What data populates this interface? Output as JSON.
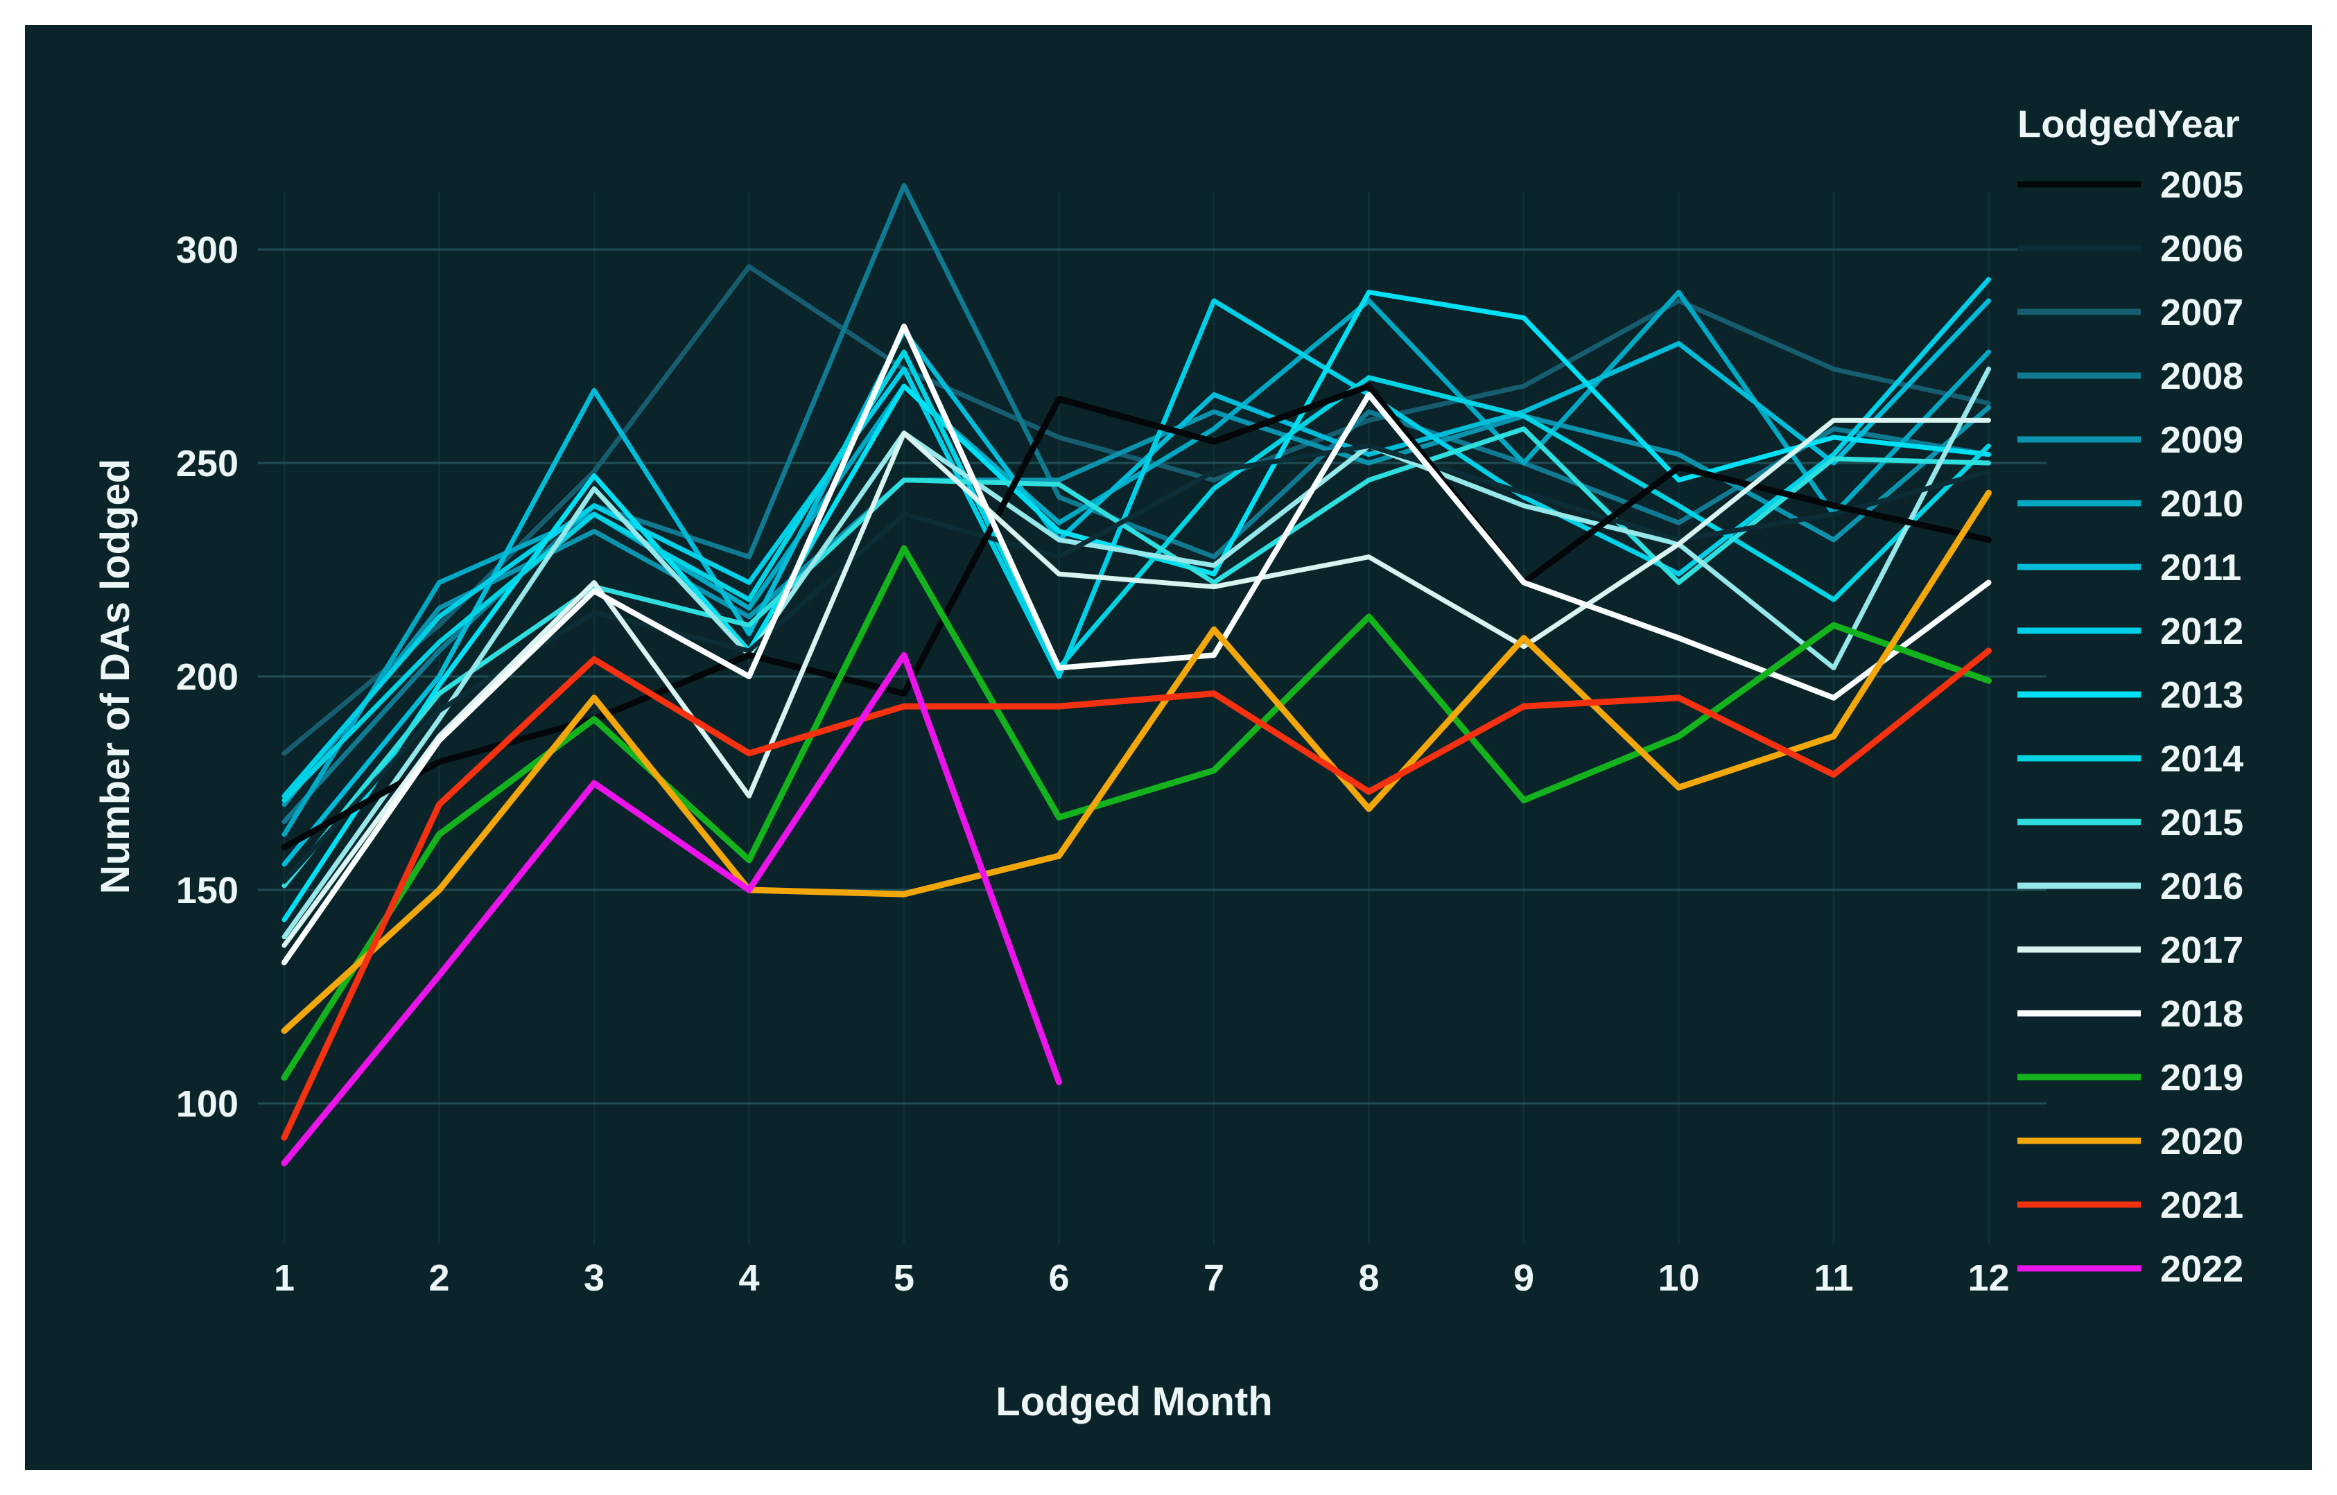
{
  "window": {
    "outer_background": "#ffffff"
  },
  "chart": {
    "background": "#0a2429",
    "text_color": "#edf6f6",
    "grid_color_h": "#24565b",
    "grid_color_v": "#14393f",
    "y_axis_title": "Number of DAs lodged",
    "x_axis_title": "Lodged Month",
    "legend_title": "LodgedYear"
  },
  "chart_data": {
    "type": "line",
    "title": "",
    "xlabel": "Lodged Month",
    "ylabel": "Number of DAs lodged",
    "legend_title": "LodgedYear",
    "legend_position": "right",
    "grid": true,
    "x": [
      1,
      2,
      3,
      4,
      5,
      6,
      7,
      8,
      9,
      10,
      11,
      12
    ],
    "xlim": [
      0.8,
      12.4
    ],
    "ylim": [
      80,
      325
    ],
    "y_ticks": [
      100,
      150,
      200,
      250,
      300
    ],
    "x_ticks": [
      1,
      2,
      3,
      4,
      5,
      6,
      7,
      8,
      9,
      10,
      11,
      12
    ],
    "draw_order": [
      "2007",
      "2008",
      "2009",
      "2010",
      "2011",
      "2012",
      "2013",
      "2014",
      "2015",
      "2016",
      "2006",
      "2005",
      "2017",
      "2018",
      "2019",
      "2020",
      "2021",
      "2022"
    ],
    "series": [
      {
        "name": "2005",
        "color": "#030709",
        "width": 9,
        "values": [
          160,
          180,
          190,
          205,
          196,
          265,
          255,
          268,
          222,
          249,
          240,
          232
        ]
      },
      {
        "name": "2006",
        "color": "#0c2d36",
        "width": 7,
        "values": [
          152,
          192,
          215,
          206,
          238,
          228,
          248,
          254,
          243,
          232,
          238,
          248
        ]
      },
      {
        "name": "2007",
        "color": "#175d70",
        "width": 7,
        "values": [
          182,
          212,
          248,
          296,
          272,
          256,
          246,
          260,
          268,
          288,
          272,
          264
        ]
      },
      {
        "name": "2008",
        "color": "#107a92",
        "width": 7,
        "values": [
          166,
          206,
          240,
          228,
          315,
          242,
          228,
          262,
          250,
          236,
          258,
          252
        ]
      },
      {
        "name": "2009",
        "color": "#0c93ad",
        "width": 7,
        "values": [
          170,
          216,
          234,
          214,
          246,
          246,
          262,
          250,
          261,
          252,
          232,
          263
        ]
      },
      {
        "name": "2010",
        "color": "#00a8c4",
        "width": 7,
        "values": [
          163,
          222,
          238,
          216,
          268,
          236,
          258,
          288,
          250,
          290,
          238,
          276
        ]
      },
      {
        "name": "2011",
        "color": "#00bcd9",
        "width": 7,
        "values": [
          156,
          200,
          267,
          210,
          281,
          232,
          266,
          252,
          262,
          278,
          250,
          288
        ]
      },
      {
        "name": "2012",
        "color": "#00cfe8",
        "width": 7,
        "values": [
          172,
          214,
          240,
          222,
          272,
          200,
          288,
          266,
          242,
          224,
          252,
          293
        ]
      },
      {
        "name": "2013",
        "color": "#00e0f4",
        "width": 7,
        "values": [
          143,
          198,
          247,
          206,
          268,
          234,
          224,
          290,
          284,
          246,
          256,
          252
        ]
      },
      {
        "name": "2014",
        "color": "#00d4e4",
        "width": 7,
        "values": [
          171,
          208,
          238,
          218,
          276,
          202,
          244,
          270,
          261,
          240,
          218,
          254
        ]
      },
      {
        "name": "2015",
        "color": "#2fdede",
        "width": 7,
        "values": [
          151,
          196,
          221,
          212,
          246,
          245,
          222,
          246,
          258,
          222,
          251,
          250
        ]
      },
      {
        "name": "2016",
        "color": "#96e7e9",
        "width": 7,
        "values": [
          139,
          190,
          244,
          205,
          257,
          232,
          226,
          254,
          240,
          231,
          202,
          272
        ]
      },
      {
        "name": "2017",
        "color": "#d9f3f2",
        "width": 7,
        "values": [
          137,
          186,
          222,
          172,
          257,
          224,
          221,
          228,
          207,
          231,
          260,
          260
        ]
      },
      {
        "name": "2018",
        "color": "#fbfefe",
        "width": 8,
        "values": [
          133,
          185,
          220,
          200,
          282,
          202,
          205,
          266,
          222,
          209,
          195,
          222
        ]
      },
      {
        "name": "2019",
        "color": "#14b31e",
        "width": 9,
        "values": [
          106,
          163,
          190,
          157,
          230,
          167,
          178,
          214,
          171,
          186,
          212,
          199
        ]
      },
      {
        "name": "2020",
        "color": "#f2a70c",
        "width": 9,
        "values": [
          117,
          150,
          195,
          150,
          149,
          158,
          211,
          169,
          209,
          174,
          186,
          243
        ]
      },
      {
        "name": "2021",
        "color": "#f43111",
        "width": 9,
        "values": [
          92,
          170,
          204,
          182,
          193,
          193,
          196,
          173,
          193,
          195,
          177,
          206
        ]
      },
      {
        "name": "2022",
        "color": "#eb14eb",
        "width": 9,
        "values": [
          86,
          130,
          175,
          150,
          205,
          105,
          null,
          null,
          null,
          null,
          null,
          null
        ]
      }
    ]
  }
}
